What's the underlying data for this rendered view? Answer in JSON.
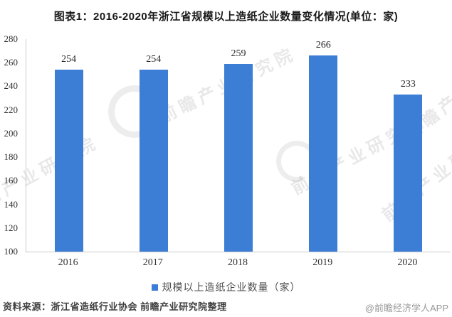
{
  "title": "图表1：2016-2020年浙江省规模以上造纸企业数量变化情况(单位：家)",
  "chart_data": {
    "type": "bar",
    "title": "图表1：2016-2020年浙江省规模以上造纸企业数量变化情况(单位：家)",
    "categories": [
      "2016",
      "2017",
      "2018",
      "2019",
      "2020"
    ],
    "series": [
      {
        "name": "规模以上造纸企业数量（家）",
        "values": [
          254,
          254,
          259,
          266,
          233
        ]
      }
    ],
    "xlabel": "",
    "ylabel": "",
    "ylim": [
      100,
      280
    ],
    "ytick_step": 20,
    "ytick_labels": [
      "280",
      "260",
      "240",
      "220",
      "200",
      "180",
      "160",
      "140",
      "120",
      "100"
    ],
    "grid": false,
    "legend_position": "bottom",
    "value_labels": true,
    "bar_color": "#3C7DD6"
  },
  "legend": {
    "label": "规模以上造纸企业数量（家）"
  },
  "footer": {
    "source": "资料来源：浙江省造纸行业协会 前瞻产业研究院整理",
    "credit": "@前瞻经济学人APP"
  },
  "watermark": {
    "text": "前瞻产业研究院"
  },
  "colors": {
    "bar": "#3C7DD6",
    "axis_line": "#CCCCCC",
    "title_text": "#1A1A1A",
    "tick_text": "#333333",
    "value_text": "#262626",
    "legend_text": "#4D4D4D",
    "source_text": "#404040",
    "credit_text": "#999999",
    "background": "#FFFFFF"
  }
}
